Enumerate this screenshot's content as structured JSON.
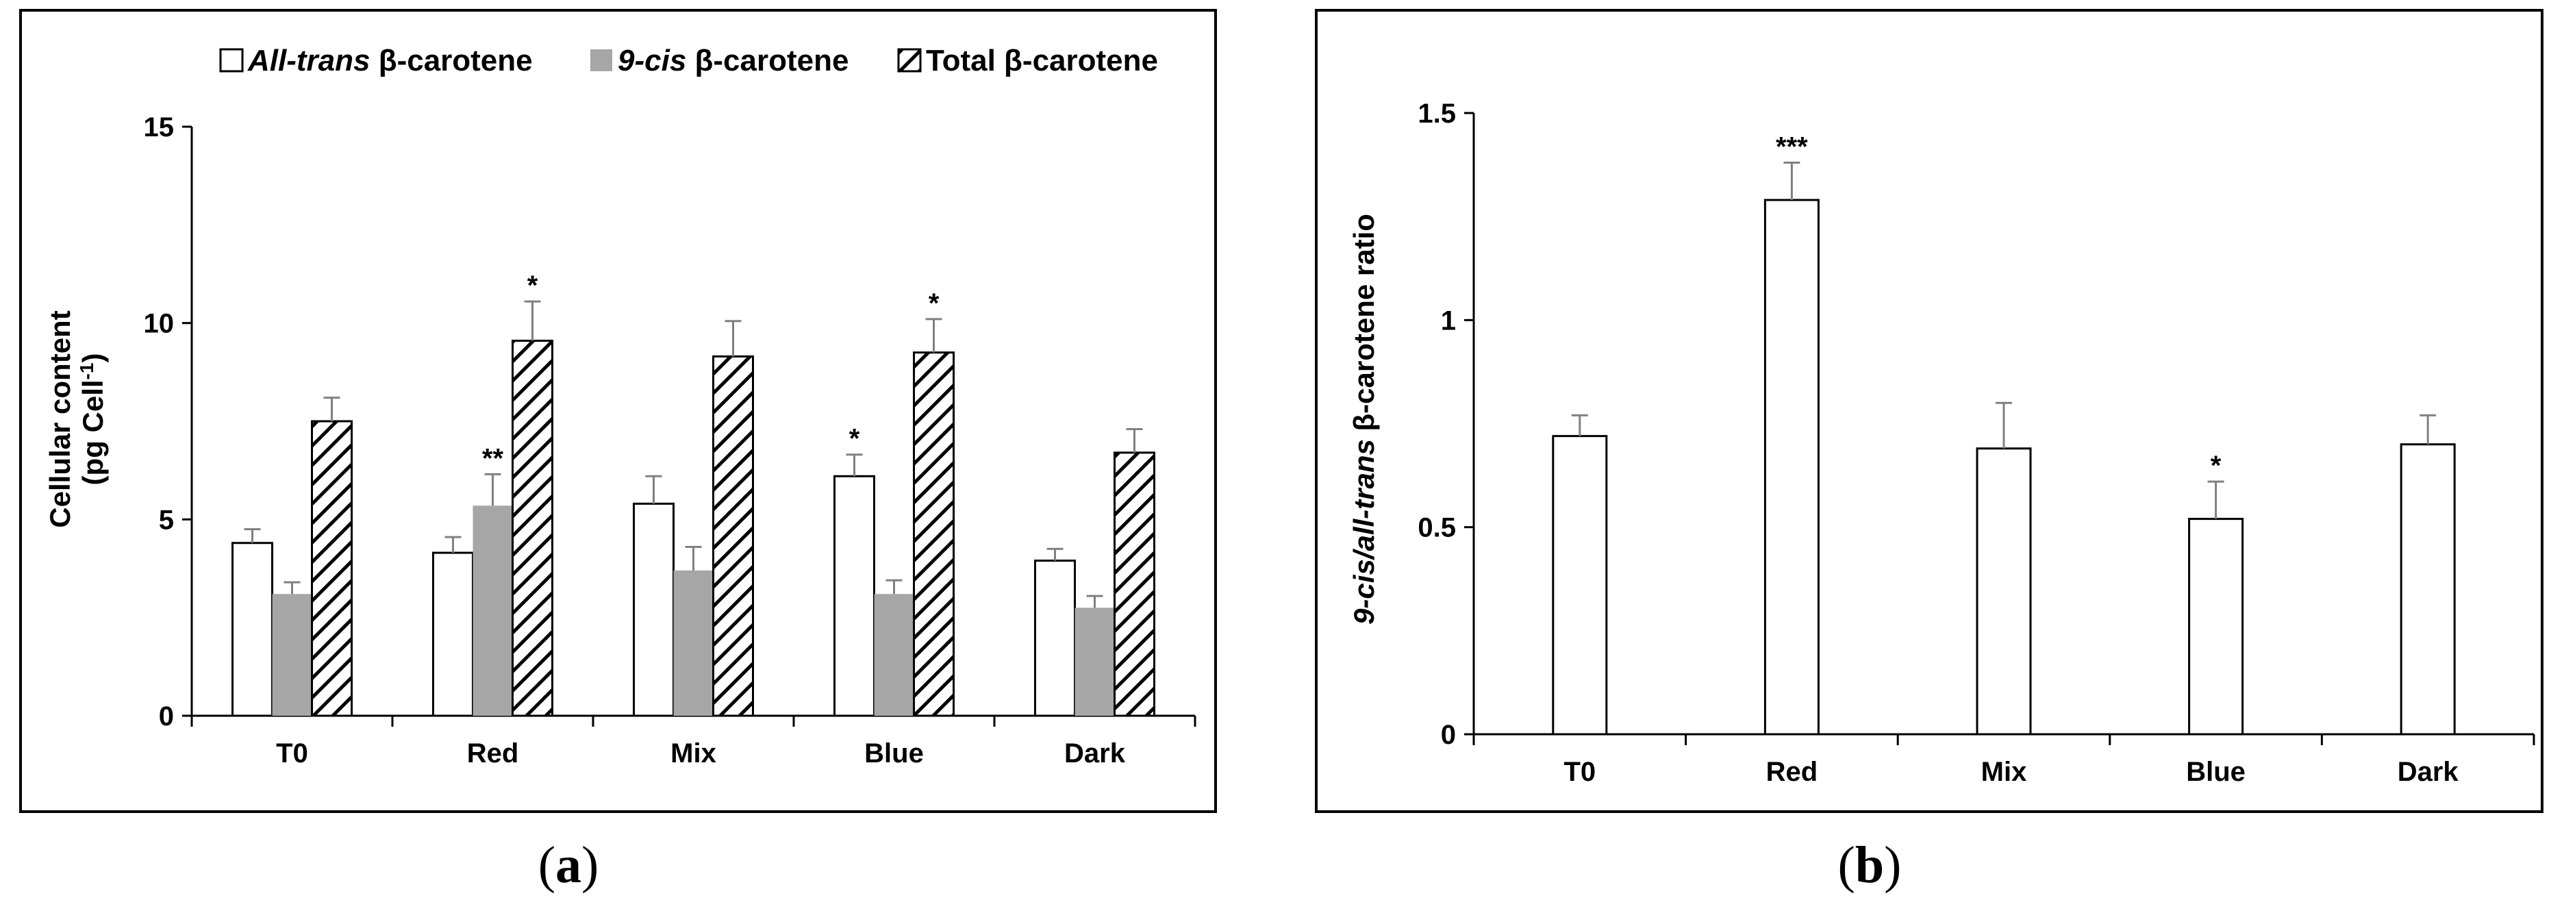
{
  "chart_data": [
    {
      "type": "bar",
      "panel": "a",
      "panel_label": {
        "open": "(",
        "letter": "a",
        "close": ")"
      },
      "categories": [
        "T0",
        "Red",
        "Mix",
        "Blue",
        "Dark"
      ],
      "series": [
        {
          "name_italic": "All-trans",
          "name_rest": " β-carotene",
          "fill": "white",
          "values": [
            4.4,
            4.15,
            5.4,
            6.1,
            3.95
          ],
          "errors": [
            0.35,
            0.4,
            0.7,
            0.55,
            0.3
          ],
          "significance": [
            "",
            "",
            "",
            "*",
            ""
          ]
        },
        {
          "name_italic": "9-cis",
          "name_rest": " β-carotene",
          "fill": "gray",
          "values": [
            3.1,
            5.35,
            3.7,
            3.1,
            2.75
          ],
          "errors": [
            0.3,
            0.8,
            0.6,
            0.35,
            0.3
          ],
          "significance": [
            "",
            "**",
            "",
            "",
            ""
          ]
        },
        {
          "name_italic": "",
          "name_rest": "Total β-carotene",
          "fill": "hatched",
          "values": [
            7.5,
            9.55,
            9.15,
            9.25,
            6.7
          ],
          "errors": [
            0.6,
            1.0,
            0.9,
            0.85,
            0.6
          ],
          "significance": [
            "",
            "*",
            "",
            "*",
            ""
          ]
        }
      ],
      "ylabel_line1": "Cellular content",
      "ylabel_line2_pre": "(pg Cell",
      "ylabel_line2_sup": "-1",
      "ylabel_line2_post": ")",
      "ylim": [
        0,
        15
      ],
      "yticks": [
        "0",
        "5",
        "10",
        "15"
      ],
      "ytick_values": [
        0,
        5,
        10,
        15
      ],
      "legend": "top",
      "grid": false
    },
    {
      "type": "bar",
      "panel": "b",
      "panel_label": {
        "open": "(",
        "letter": "b",
        "close": ")"
      },
      "categories": [
        "T0",
        "Red",
        "Mix",
        "Blue",
        "Dark"
      ],
      "series": [
        {
          "name": "9-cis/all-trans β-carotene ratio",
          "fill": "white",
          "values": [
            0.72,
            1.29,
            0.69,
            0.52,
            0.7
          ],
          "errors": [
            0.05,
            0.09,
            0.11,
            0.09,
            0.07
          ],
          "significance": [
            "",
            "***",
            "",
            "*",
            ""
          ]
        }
      ],
      "ylabel_italic": "9-cis/all-trans",
      "ylabel_rest": " β-carotene ratio",
      "ylim": [
        0,
        1.5
      ],
      "yticks": [
        "0",
        "0.5",
        "1",
        "1.5"
      ],
      "ytick_values": [
        0,
        0.5,
        1,
        1.5
      ],
      "grid": false
    }
  ],
  "colors": {
    "frame": "#000000",
    "gray_bar": "#a6a6a6",
    "error_bar": "#808080"
  }
}
